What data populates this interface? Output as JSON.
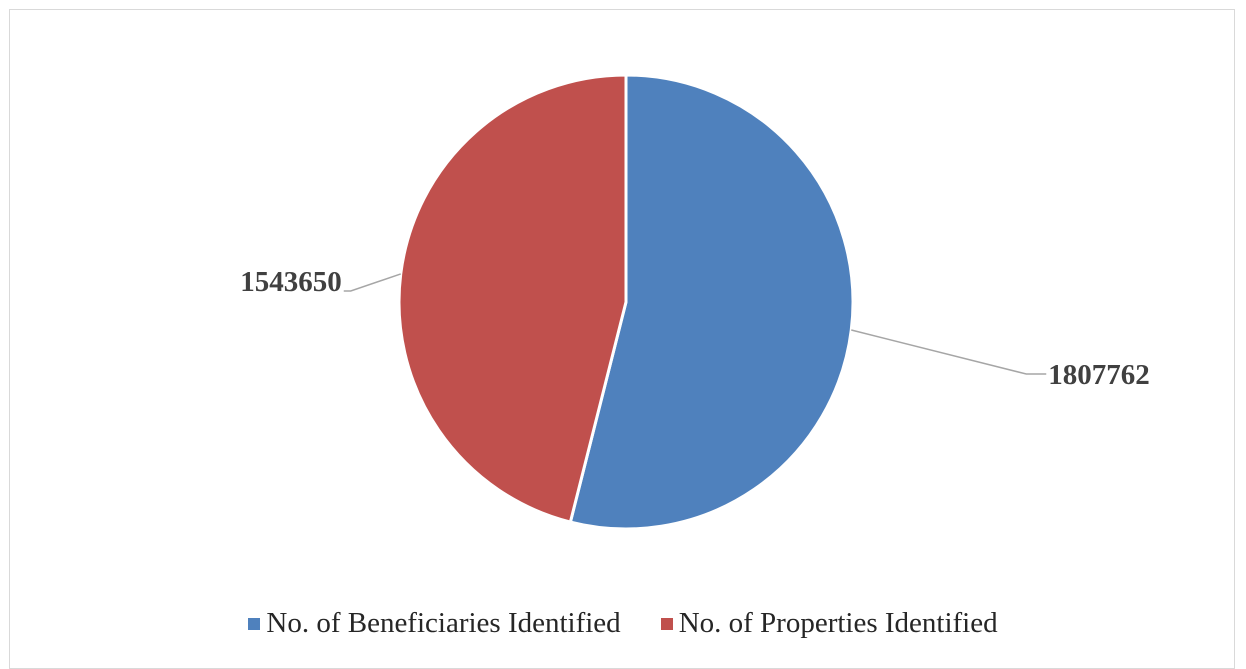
{
  "chart_data": {
    "type": "pie",
    "categories": [
      "No. of Beneficiaries Identified",
      "No. of Properties Identified"
    ],
    "values": [
      1807762,
      1543650
    ],
    "data_labels": [
      "1807762",
      "1543650"
    ],
    "colors": [
      "#4f81bd",
      "#c0504d"
    ],
    "title": "",
    "legend_position": "bottom",
    "start_angle": "12 o'clock",
    "direction": "clockwise"
  }
}
